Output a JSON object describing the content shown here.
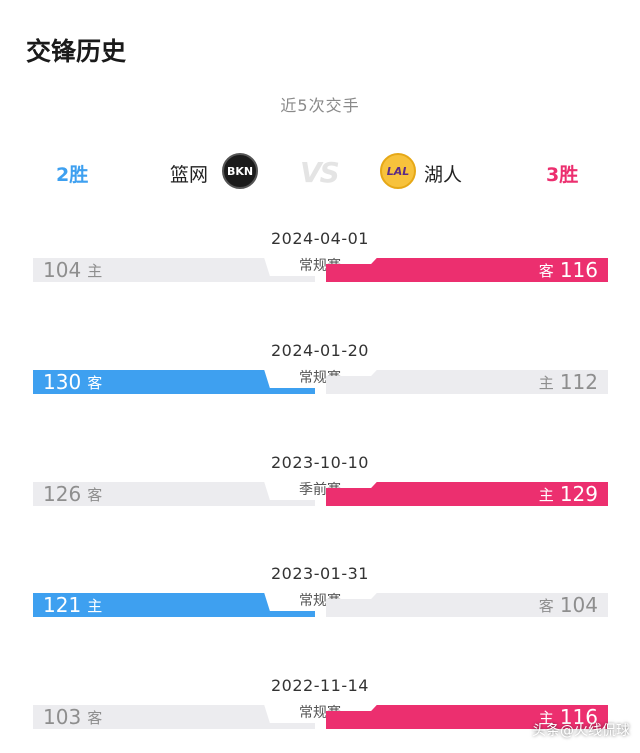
{
  "header": {
    "title": "交锋历史",
    "subtitle": "近5次交手"
  },
  "summary": {
    "left_wins": "2胜",
    "left_team": "篮网",
    "left_logo_text": "BKN",
    "vs": "VS",
    "right_logo_text": "LAL",
    "right_team": "湖人",
    "right_wins": "3胜"
  },
  "colors": {
    "left_team": "#3ea0f0",
    "right_team": "#ec2f6f",
    "loser_bar": "#ececef"
  },
  "games": [
    {
      "date": "2024-04-01",
      "type": "常规赛",
      "left_score": "104",
      "left_side": "主",
      "right_side": "客",
      "right_score": "116",
      "winner": "right"
    },
    {
      "date": "2024-01-20",
      "type": "常规赛",
      "left_score": "130",
      "left_side": "客",
      "right_side": "主",
      "right_score": "112",
      "winner": "left"
    },
    {
      "date": "2023-10-10",
      "type": "季前赛",
      "left_score": "126",
      "left_side": "客",
      "right_side": "主",
      "right_score": "129",
      "winner": "right"
    },
    {
      "date": "2023-01-31",
      "type": "常规赛",
      "left_score": "121",
      "left_side": "主",
      "right_side": "客",
      "right_score": "104",
      "winner": "left"
    },
    {
      "date": "2022-11-14",
      "type": "常规赛",
      "left_score": "103",
      "left_side": "客",
      "right_side": "主",
      "right_score": "116",
      "winner": "right"
    }
  ],
  "watermark": "头条@火线侃球"
}
